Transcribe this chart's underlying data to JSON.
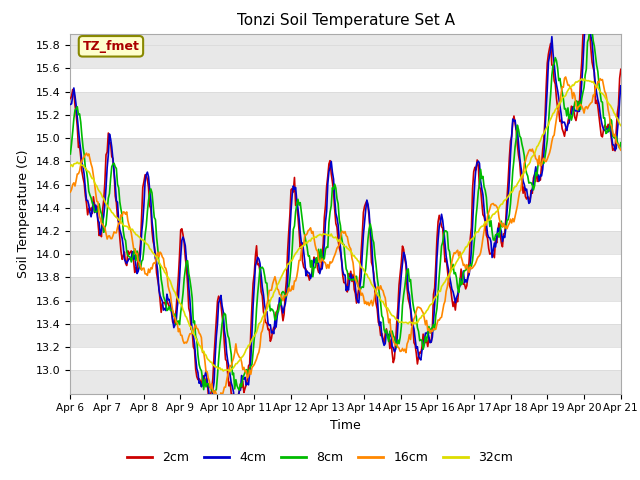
{
  "title": "Tonzi Soil Temperature Set A",
  "xlabel": "Time",
  "ylabel": "Soil Temperature (C)",
  "ylim": [
    12.8,
    15.9
  ],
  "yticks": [
    13.0,
    13.2,
    13.4,
    13.6,
    13.8,
    14.0,
    14.2,
    14.4,
    14.6,
    14.8,
    15.0,
    15.2,
    15.4,
    15.6,
    15.8
  ],
  "xtick_labels": [
    "Apr 6",
    "Apr 7",
    "Apr 8",
    "Apr 9",
    "Apr 10",
    "Apr 11",
    "Apr 12",
    "Apr 13",
    "Apr 14",
    "Apr 15",
    "Apr 16",
    "Apr 17",
    "Apr 18",
    "Apr 19",
    "Apr 20",
    "Apr 21"
  ],
  "colors": {
    "2cm": "#cc0000",
    "4cm": "#0000cc",
    "8cm": "#00bb00",
    "16cm": "#ff8800",
    "32cm": "#dddd00"
  },
  "annotation_text": "TZ_fmet",
  "annotation_color": "#aa0000",
  "annotation_bg": "#ffffcc",
  "annotation_edge": "#888800",
  "fig_bg": "#ffffff",
  "plot_bg": "#e8e8e8",
  "grid_color": "#ffffff",
  "stripe_color": "#d8d8d8",
  "n_points": 480
}
